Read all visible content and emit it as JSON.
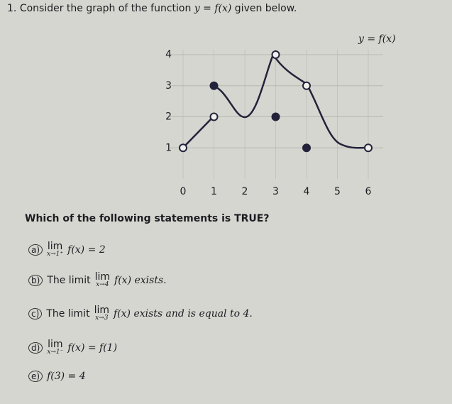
{
  "question": {
    "number": "1.",
    "text": "Consider the graph of the function",
    "func": "y = f(x)",
    "tail": "given below."
  },
  "graph": {
    "curve_label": "y = f(x)",
    "xlim": [
      0,
      6
    ],
    "ylim": [
      0,
      4
    ],
    "xticks": [
      0,
      1,
      2,
      3,
      4,
      5,
      6
    ],
    "yticks": [
      1,
      2,
      3,
      4
    ],
    "points": [
      {
        "x": 0,
        "y": 1,
        "filled": false
      },
      {
        "x": 1,
        "y": 2,
        "filled": false
      },
      {
        "x": 1,
        "y": 3,
        "filled": true
      },
      {
        "x": 3,
        "y": 4,
        "filled": false
      },
      {
        "x": 3,
        "y": 2,
        "filled": true
      },
      {
        "x": 4,
        "y": 3,
        "filled": false
      },
      {
        "x": 4,
        "y": 1,
        "filled": true
      },
      {
        "x": 6,
        "y": 1,
        "filled": false
      }
    ]
  },
  "prompt": "Which of the following statements is TRUE?",
  "options": [
    {
      "marker": "a)",
      "lim": "lim",
      "sub": "x→1⁺",
      "expr": "f(x) = 2"
    },
    {
      "marker": "b)",
      "prefix": "The limit",
      "lim": "lim",
      "sub": "x→4",
      "expr": "f(x) exists."
    },
    {
      "marker": "c)",
      "prefix": "The limit",
      "lim": "lim",
      "sub": "x→3",
      "expr": "f(x) exists and is equal to 4."
    },
    {
      "marker": "d)",
      "lim": "lim",
      "sub": "x→1⁻",
      "expr": "f(x) = f(1)"
    },
    {
      "marker": "e)",
      "expr": "f(3) = 4"
    }
  ]
}
